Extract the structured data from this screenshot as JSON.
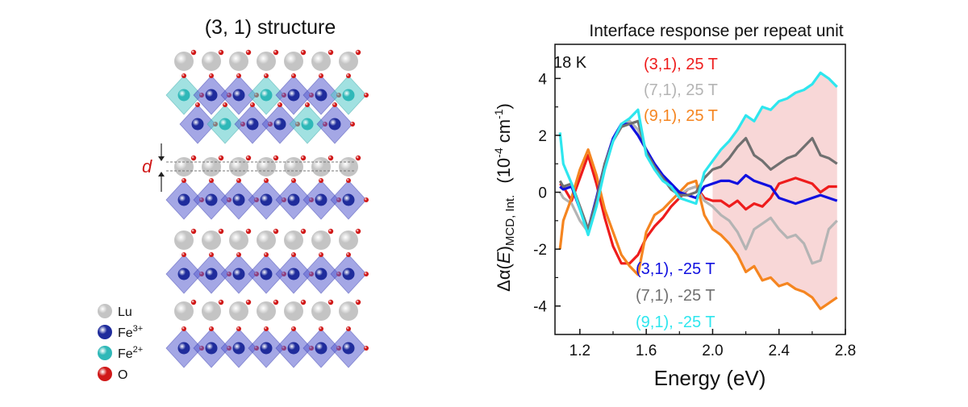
{
  "structure": {
    "title": "(3, 1) structure",
    "d_label": "d",
    "legend": [
      {
        "label": "Lu",
        "sup": "",
        "color": "#d8d8d8"
      },
      {
        "label": "Fe",
        "sup": "3+",
        "color": "#1f2c9c"
      },
      {
        "label": "Fe",
        "sup": "2+",
        "color": "#2fb8b8"
      },
      {
        "label": "O",
        "sup": "",
        "color": "#d01818"
      }
    ],
    "colors": {
      "lu": "#d8d8d8",
      "fe3": "#1f2c9c",
      "fe2": "#2fb8b8",
      "o": "#d01818",
      "oct3": "#5a5fd0",
      "oct2": "#54c8c8"
    }
  },
  "chart_data": {
    "type": "line",
    "title": "Interface response per repeat unit",
    "annotation": "18 K",
    "xlabel": "Energy (eV)",
    "ylabel_parts": {
      "main": "Δα(",
      "var": "E",
      "close": ")",
      "sub": "MCD, Int.",
      "units_pre": "(10",
      "units_exp": "-4",
      "units_mid": " cm",
      "units_exp2": "-1",
      "units_close": ")"
    },
    "xlim": [
      1.05,
      2.8
    ],
    "ylim": [
      -5,
      5.2
    ],
    "xticks": [
      1.2,
      1.6,
      2.0,
      2.4,
      2.8
    ],
    "xtick_labels": [
      "1.2",
      "1.6",
      "2.0",
      "2.4",
      "2.8"
    ],
    "yticks": [
      -4,
      -2,
      0,
      2,
      4
    ],
    "ytick_labels": [
      "-4",
      "-2",
      "0",
      "2",
      "4"
    ],
    "x": [
      1.08,
      1.1,
      1.15,
      1.2,
      1.25,
      1.3,
      1.35,
      1.4,
      1.45,
      1.5,
      1.55,
      1.6,
      1.65,
      1.7,
      1.75,
      1.8,
      1.85,
      1.9,
      1.95,
      2.0,
      2.05,
      2.1,
      2.15,
      2.2,
      2.25,
      2.3,
      2.35,
      2.4,
      2.45,
      2.5,
      2.55,
      2.6,
      2.65,
      2.7,
      2.75
    ],
    "series": [
      {
        "name": "(3,1), 25 T",
        "color": "#ee1c1c",
        "values": [
          0.3,
          0.2,
          -0.3,
          0.5,
          1.3,
          0.3,
          -0.9,
          -1.9,
          -2.5,
          -2.5,
          -2.2,
          -1.6,
          -1.2,
          -0.9,
          -0.5,
          -0.2,
          0.1,
          0.2,
          -0.2,
          -0.3,
          -0.3,
          -0.5,
          -0.3,
          -0.6,
          -0.4,
          -0.5,
          -0.2,
          0.3,
          0.4,
          0.5,
          0.4,
          0.3,
          0.0,
          0.2,
          0.2
        ]
      },
      {
        "name": "(7,1), 25 T",
        "color": "#b4b4b4",
        "values": [
          0.0,
          -0.2,
          -0.4,
          -1.0,
          -1.4,
          -0.2,
          1.0,
          1.8,
          2.4,
          2.5,
          2.2,
          1.5,
          0.9,
          0.5,
          0.2,
          -0.1,
          0.1,
          0.2,
          -0.3,
          -0.5,
          -0.8,
          -1.0,
          -1.4,
          -2.0,
          -1.3,
          -1.1,
          -0.9,
          -1.3,
          -1.6,
          -1.5,
          -1.8,
          -2.5,
          -2.4,
          -1.3,
          -1.0
        ]
      },
      {
        "name": "(9,1), 25 T",
        "color": "#f58520",
        "values": [
          -2.0,
          -1.0,
          -0.2,
          0.8,
          1.5,
          0.6,
          -0.6,
          -1.4,
          -2.2,
          -2.6,
          -2.9,
          -1.4,
          -0.8,
          -0.6,
          -0.3,
          0.0,
          0.3,
          0.4,
          -0.8,
          -1.3,
          -1.5,
          -1.8,
          -2.2,
          -2.8,
          -2.6,
          -3.1,
          -3.0,
          -3.3,
          -3.2,
          -3.4,
          -3.5,
          -3.7,
          -4.1,
          -3.9,
          -3.7
        ]
      },
      {
        "name": "(3,1), -25 T",
        "color": "#1010e0",
        "values": [
          0.2,
          0.1,
          0.2,
          -0.6,
          -1.3,
          -0.2,
          1.0,
          1.9,
          2.4,
          2.4,
          2.0,
          1.5,
          1.0,
          0.6,
          0.3,
          0.0,
          -0.1,
          -0.2,
          0.2,
          0.3,
          0.4,
          0.4,
          0.3,
          0.6,
          0.4,
          0.3,
          0.2,
          -0.2,
          -0.3,
          -0.4,
          -0.3,
          -0.2,
          -0.1,
          -0.2,
          -0.3
        ]
      },
      {
        "name": "(7,1), -25 T",
        "color": "#707070",
        "values": [
          0.4,
          0.2,
          0.3,
          -0.5,
          -1.3,
          -0.3,
          1.0,
          1.8,
          2.3,
          2.4,
          2.5,
          1.4,
          0.9,
          0.5,
          0.1,
          -0.1,
          -0.1,
          0.0,
          0.5,
          0.8,
          0.9,
          1.2,
          1.6,
          1.9,
          1.3,
          1.1,
          0.8,
          1.0,
          1.2,
          1.3,
          1.6,
          1.9,
          1.3,
          1.2,
          1.0
        ]
      },
      {
        "name": "(9,1), -25 T",
        "color": "#2ee6ee",
        "values": [
          2.1,
          1.0,
          0.3,
          -0.6,
          -1.5,
          -0.5,
          0.8,
          1.8,
          2.4,
          2.6,
          2.9,
          1.3,
          0.8,
          0.4,
          0.2,
          -0.2,
          -0.3,
          -0.4,
          0.7,
          1.1,
          1.5,
          1.8,
          2.2,
          2.7,
          2.5,
          3.0,
          2.9,
          3.2,
          3.3,
          3.5,
          3.6,
          3.8,
          4.2,
          4.0,
          3.7
        ]
      }
    ],
    "shade": {
      "x_start": 2.0,
      "color": "#f6c9c9"
    },
    "legend_top": [
      {
        "label": "(3,1), 25 T",
        "color": "#ee1c1c"
      },
      {
        "label": "(7,1), 25 T",
        "color": "#b4b4b4"
      },
      {
        "label": "(9,1), 25 T",
        "color": "#f58520"
      }
    ],
    "legend_bottom": [
      {
        "label": "(3,1), -25 T",
        "color": "#1010e0"
      },
      {
        "label": "(7,1), -25 T",
        "color": "#707070"
      },
      {
        "label": "(9,1), -25 T",
        "color": "#2ee6ee"
      }
    ]
  }
}
